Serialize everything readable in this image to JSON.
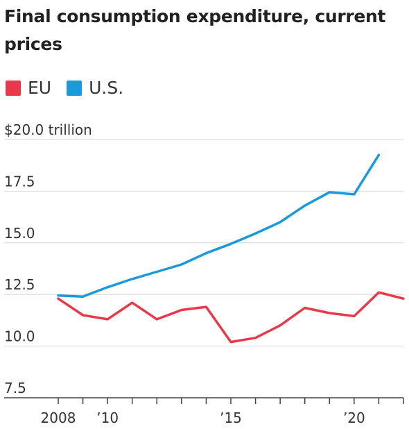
{
  "title": "Final consumption expenditure, current prices",
  "legend": [
    {
      "label": "EU",
      "color": "#e8394a"
    },
    {
      "label": "U.S.",
      "color": "#1a9ad9"
    }
  ],
  "chart_data": {
    "type": "line",
    "title": "Final consumption expenditure, current prices",
    "x": [
      2008,
      2009,
      2010,
      2011,
      2012,
      2013,
      2014,
      2015,
      2016,
      2017,
      2018,
      2019,
      2020,
      2021,
      2022
    ],
    "series": [
      {
        "name": "EU",
        "color": "#e8394a",
        "values": [
          12.3,
          11.5,
          11.3,
          12.1,
          11.3,
          11.75,
          11.9,
          10.2,
          10.4,
          11.0,
          11.85,
          11.6,
          11.45,
          12.6,
          12.3
        ]
      },
      {
        "name": "U.S.",
        "color": "#1a9ad9",
        "values": [
          12.45,
          12.4,
          12.85,
          13.25,
          13.6,
          13.95,
          14.5,
          14.95,
          15.45,
          16.0,
          16.8,
          17.45,
          17.35,
          19.25,
          null
        ]
      }
    ],
    "ylim": [
      7.5,
      20.0
    ],
    "yticks": [
      7.5,
      10.0,
      12.5,
      15.0,
      17.5,
      20.0
    ],
    "ytick_labels": [
      "7.5",
      "10.0",
      "12.5",
      "15.0",
      "17.5",
      "$20.0 trillion"
    ],
    "xlim": [
      2008,
      2022
    ],
    "xticks": [
      2008,
      2010,
      2015,
      2020
    ],
    "xtick_labels": [
      "2008",
      "’10",
      "’15",
      "’20"
    ],
    "grid": true,
    "legend_position": "top-left"
  }
}
